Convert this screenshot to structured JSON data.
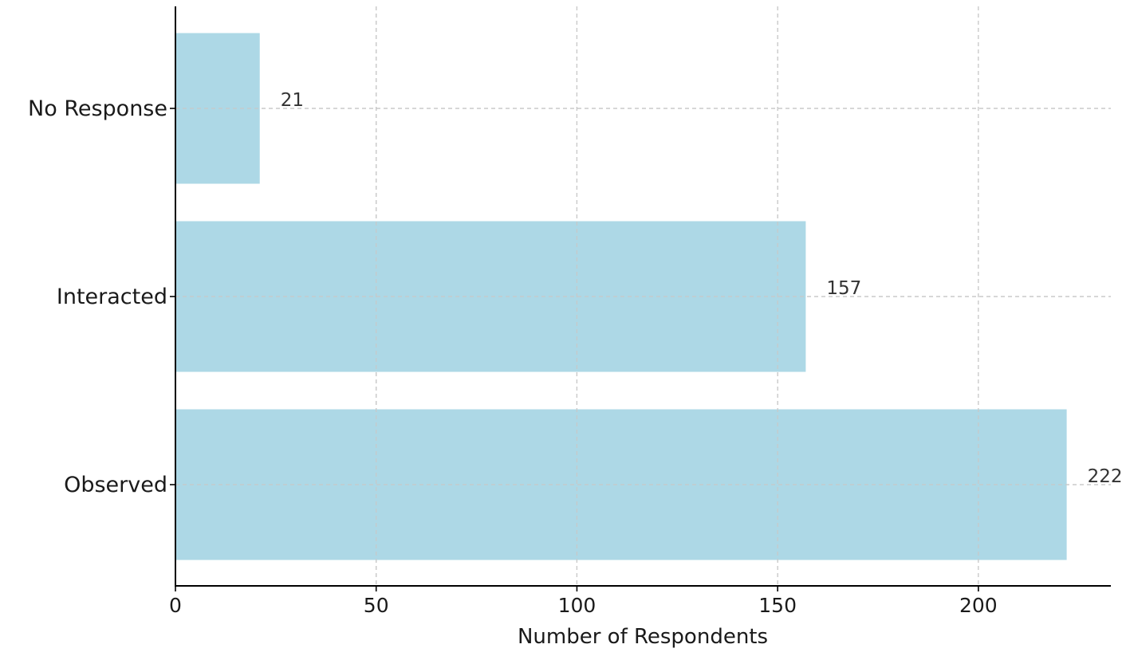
{
  "chart_data": {
    "type": "bar",
    "orientation": "horizontal",
    "categories": [
      "Observed",
      "Interacted",
      "No Response"
    ],
    "values": [
      222,
      157,
      21
    ],
    "value_labels": [
      "222",
      "157",
      "21"
    ],
    "xlabel": "Number of Respondents",
    "ylabel": "",
    "title": "",
    "xlim": [
      0,
      233
    ],
    "xticks": [
      0,
      50,
      100,
      150,
      200
    ],
    "xtick_labels": [
      "0",
      "50",
      "100",
      "150",
      "200"
    ],
    "grid": true,
    "bar_color": "#add8e6"
  }
}
